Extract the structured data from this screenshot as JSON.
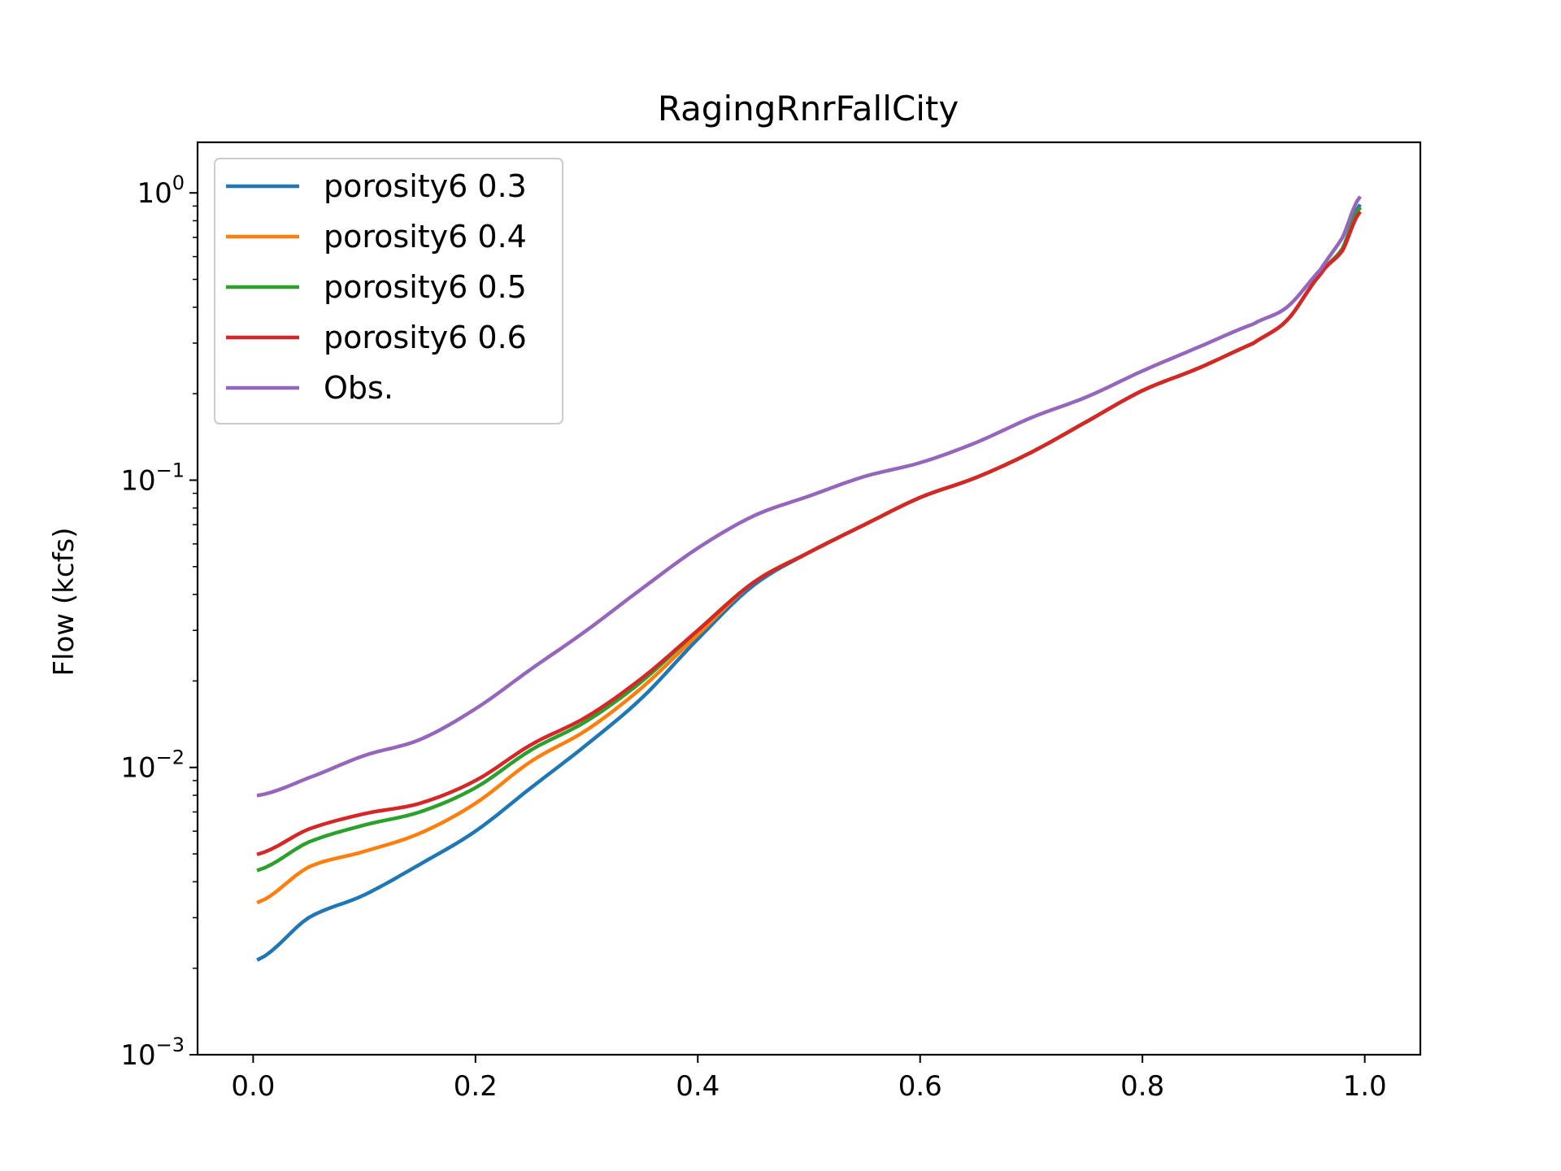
{
  "chart_data": {
    "type": "line",
    "title": "RagingRnrFallCity",
    "xlabel": "",
    "ylabel": "Flow (kcfs)",
    "xlim": [
      -0.05,
      1.05
    ],
    "ylim": [
      0.001,
      1.5
    ],
    "yscale": "log",
    "grid": false,
    "legend_position": "top-left",
    "x_ticks": [
      {
        "value": 0.0,
        "label": "0.0"
      },
      {
        "value": 0.2,
        "label": "0.2"
      },
      {
        "value": 0.4,
        "label": "0.4"
      },
      {
        "value": 0.6,
        "label": "0.6"
      },
      {
        "value": 0.8,
        "label": "0.8"
      },
      {
        "value": 1.0,
        "label": "1.0"
      }
    ],
    "y_ticks": [
      {
        "value": 0.001,
        "base": "10",
        "exp": "−3"
      },
      {
        "value": 0.01,
        "base": "10",
        "exp": "−2"
      },
      {
        "value": 0.1,
        "base": "10",
        "exp": "−1"
      },
      {
        "value": 1,
        "base": "10",
        "exp": "0"
      }
    ],
    "x": [
      0.005,
      0.05,
      0.1,
      0.15,
      0.2,
      0.25,
      0.3,
      0.35,
      0.4,
      0.45,
      0.5,
      0.55,
      0.6,
      0.65,
      0.7,
      0.75,
      0.8,
      0.85,
      0.9,
      0.93,
      0.96,
      0.98,
      0.995
    ],
    "series": [
      {
        "name": "porosity6 0.3",
        "color": "#1f77b4",
        "values": [
          0.00215,
          0.003,
          0.0036,
          0.0046,
          0.006,
          0.0085,
          0.012,
          0.0175,
          0.028,
          0.043,
          0.056,
          0.07,
          0.087,
          0.102,
          0.125,
          0.16,
          0.205,
          0.245,
          0.3,
          0.36,
          0.52,
          0.64,
          0.9
        ]
      },
      {
        "name": "porosity6 0.4",
        "color": "#ff7f0e",
        "values": [
          0.0034,
          0.0045,
          0.0051,
          0.0059,
          0.0075,
          0.0105,
          0.0135,
          0.019,
          0.029,
          0.044,
          0.056,
          0.07,
          0.087,
          0.102,
          0.125,
          0.16,
          0.205,
          0.245,
          0.3,
          0.36,
          0.52,
          0.64,
          0.88
        ]
      },
      {
        "name": "porosity6 0.5",
        "color": "#2ca02c",
        "values": [
          0.0044,
          0.0055,
          0.0063,
          0.007,
          0.0085,
          0.0115,
          0.0145,
          0.02,
          0.03,
          0.044,
          0.056,
          0.07,
          0.087,
          0.102,
          0.125,
          0.16,
          0.205,
          0.245,
          0.3,
          0.36,
          0.52,
          0.64,
          0.88
        ]
      },
      {
        "name": "porosity6 0.6",
        "color": "#d62728",
        "values": [
          0.005,
          0.0061,
          0.0069,
          0.0075,
          0.009,
          0.012,
          0.015,
          0.0205,
          0.03,
          0.044,
          0.056,
          0.07,
          0.087,
          0.102,
          0.125,
          0.16,
          0.205,
          0.245,
          0.3,
          0.36,
          0.52,
          0.63,
          0.85
        ]
      },
      {
        "name": "Obs.",
        "color": "#9467bd",
        "values": [
          0.008,
          0.0092,
          0.011,
          0.0125,
          0.016,
          0.022,
          0.03,
          0.042,
          0.058,
          0.075,
          0.088,
          0.103,
          0.115,
          0.135,
          0.165,
          0.195,
          0.24,
          0.29,
          0.35,
          0.4,
          0.54,
          0.7,
          0.96
        ]
      }
    ]
  }
}
